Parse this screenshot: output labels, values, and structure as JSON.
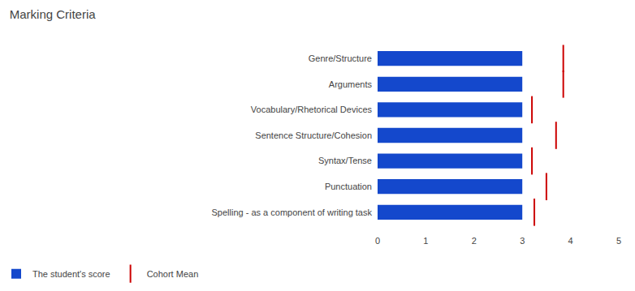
{
  "chart_data": {
    "type": "bar",
    "orientation": "horizontal",
    "title": "Marking Criteria",
    "categories": [
      "Genre/Structure",
      "Arguments",
      "Vocabulary/Rhetorical Devices",
      "Sentence Structure/Cohesion",
      "Syntax/Tense",
      "Punctuation",
      "Spelling - as a component of writing task"
    ],
    "series": [
      {
        "name": "The student's score",
        "type": "bar",
        "color": "#1448cc",
        "values": [
          3,
          3,
          3,
          3,
          3,
          3,
          3
        ]
      },
      {
        "name": "Cohort Mean",
        "type": "scatter",
        "marker": "vline",
        "color": "#cc0000",
        "values": [
          3.85,
          3.85,
          3.2,
          3.7,
          3.2,
          3.5,
          3.25
        ]
      }
    ],
    "xlim": [
      0,
      5
    ],
    "xticks": [
      0,
      1,
      2,
      3,
      4,
      5
    ],
    "grid": false,
    "legend": "bottom"
  }
}
